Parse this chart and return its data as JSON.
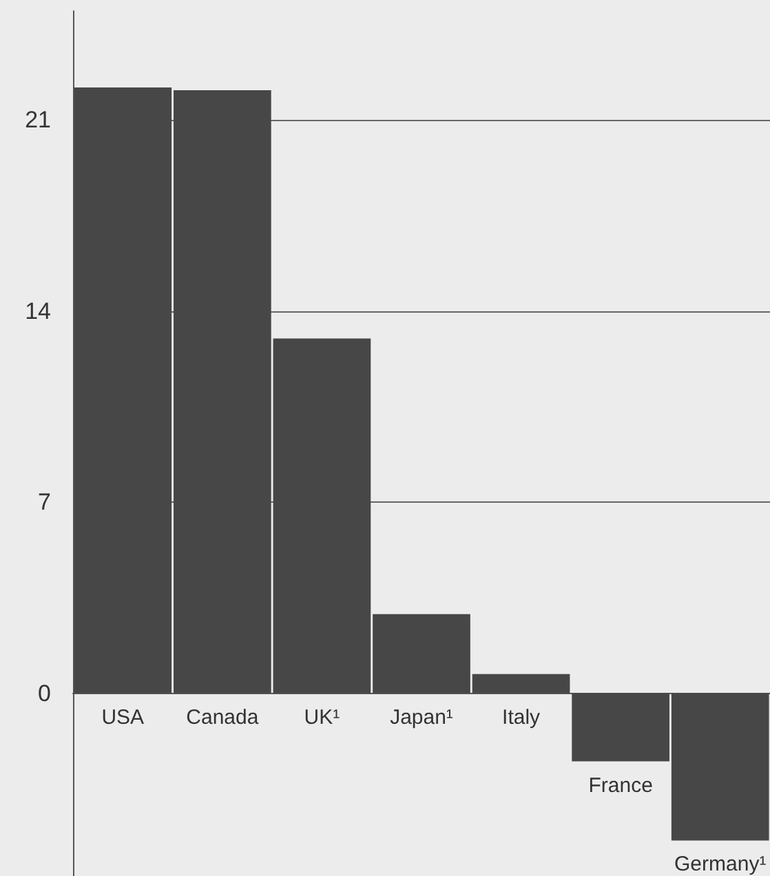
{
  "chart_data": {
    "type": "bar",
    "categories": [
      "USA",
      "Canada",
      "UK¹",
      "Japan¹",
      "Italy",
      "France",
      "Germany¹"
    ],
    "values": [
      22.2,
      22.1,
      13.0,
      2.9,
      0.7,
      -2.5,
      -5.4
    ],
    "color": "#474747",
    "ylim": [
      -6.7,
      25
    ],
    "yticks": [
      0,
      7,
      14,
      21
    ],
    "grid": "y"
  }
}
